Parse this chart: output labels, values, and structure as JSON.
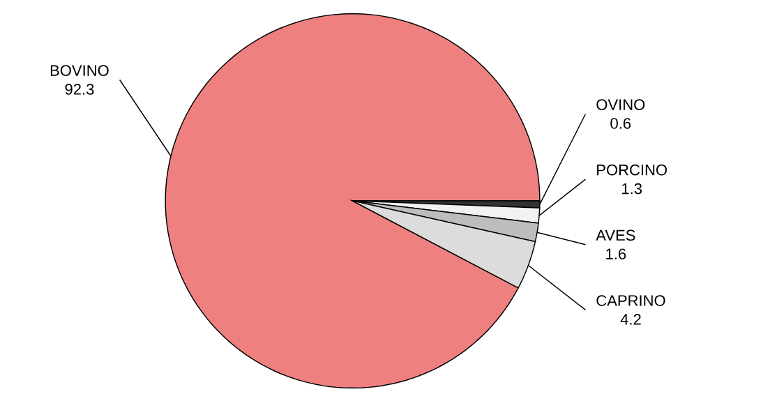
{
  "chart_data": {
    "type": "pie",
    "categories": [
      "BOVINO",
      "OVINO",
      "PORCINO",
      "AVES",
      "CAPRINO"
    ],
    "values": [
      92.3,
      0.6,
      1.3,
      1.6,
      4.2
    ],
    "colors": [
      "#ef8080",
      "#333333",
      "#f2f2f2",
      "#bdbdbd",
      "#dcdcdc"
    ],
    "data_labels": true
  }
}
